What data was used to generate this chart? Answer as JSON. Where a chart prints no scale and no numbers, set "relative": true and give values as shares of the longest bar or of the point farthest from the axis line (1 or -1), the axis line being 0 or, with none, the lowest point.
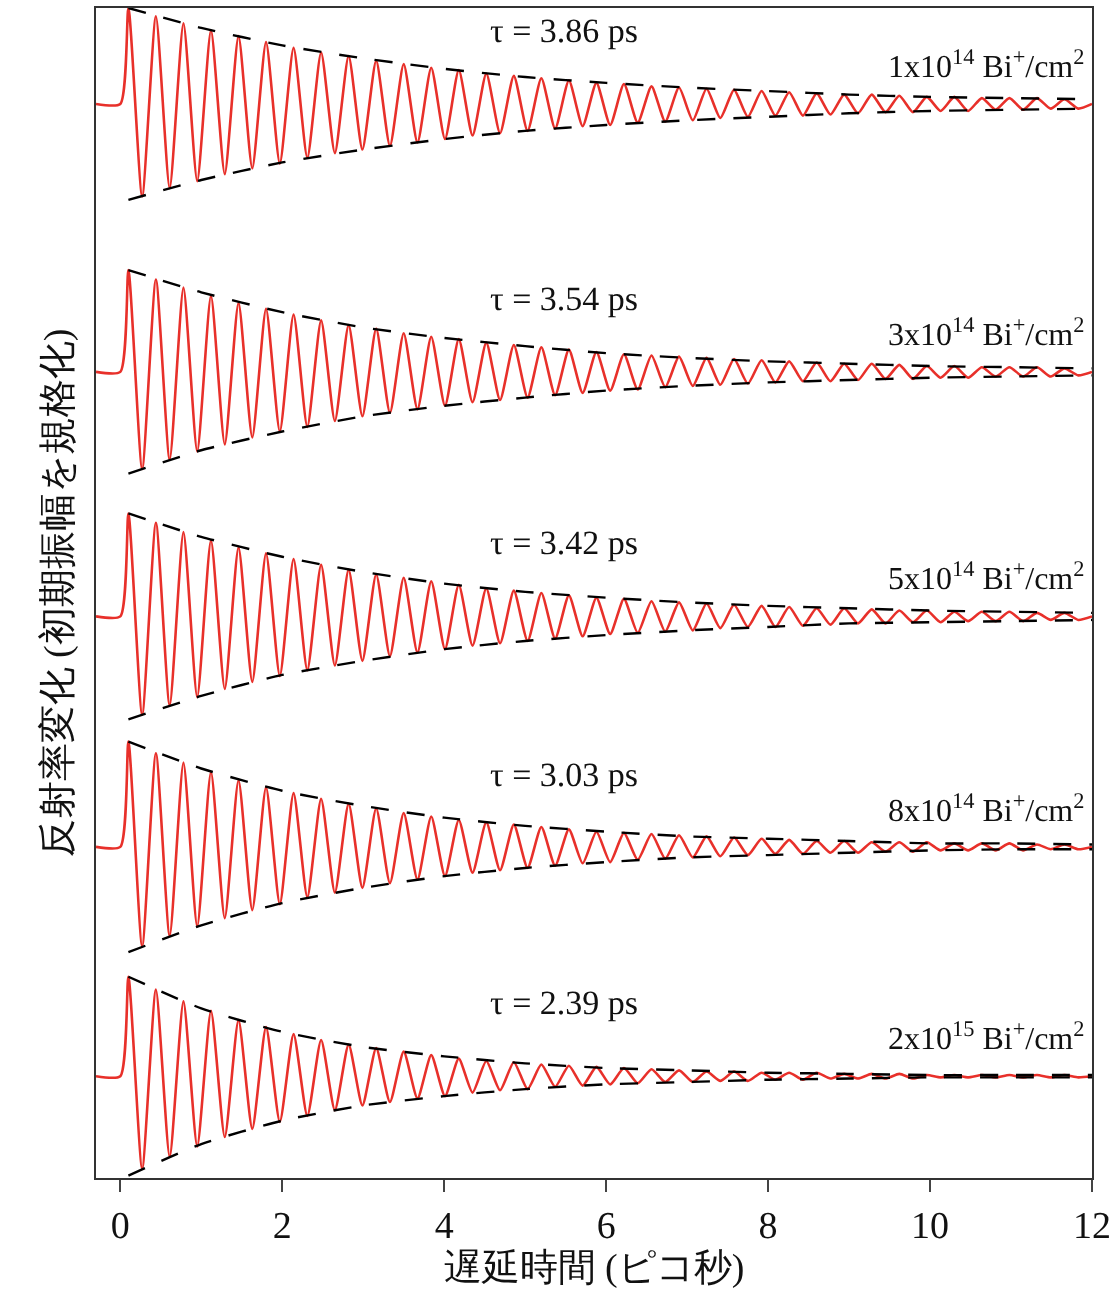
{
  "chart_data": {
    "type": "line",
    "relative": true,
    "marker": "none",
    "xlabel": "遅延時間 (ピコ秒)",
    "ylabel": "反射率変化 (初期振幅を規格化)",
    "xlim": [
      -0.3,
      12
    ],
    "xticks": [
      0,
      2,
      4,
      6,
      8,
      10,
      12
    ],
    "x": [
      -0.3,
      0,
      0.1,
      0.27,
      0.44,
      0.61,
      0.78,
      0.95,
      1.12,
      1.29,
      1.46,
      1.63,
      1.8,
      1.97,
      2.14,
      2.31,
      2.48,
      2.65,
      2.82,
      2.99,
      3.16,
      3.33,
      3.5,
      3.67,
      3.84,
      4.01,
      4.18,
      4.35,
      4.52,
      4.69,
      4.86,
      5.03,
      5.2,
      5.37,
      5.54,
      5.71,
      5.88,
      6.05,
      6.22,
      6.39,
      6.56,
      6.73,
      6.9,
      7.07,
      7.24,
      7.41,
      7.58,
      7.75,
      7.92,
      8.09,
      8.26,
      8.43,
      8.6,
      8.77,
      8.94,
      9.11,
      9.28,
      9.45,
      9.62,
      9.79,
      9.96,
      10.13,
      10.3,
      10.47,
      10.64,
      10.81,
      10.98,
      11.15,
      11.32,
      11.49,
      11.66,
      11.83,
      12
    ],
    "series": [
      {
        "color": "#e8302a",
        "line_style": "solid",
        "values": [
          0.918,
          0.918,
          1.0,
          0.839,
          0.993,
          0.846,
          0.987,
          0.852,
          0.981,
          0.858,
          0.976,
          0.863,
          0.971,
          0.867,
          0.966,
          0.872,
          0.962,
          0.876,
          0.959,
          0.879,
          0.955,
          0.882,
          0.952,
          0.885,
          0.949,
          0.888,
          0.947,
          0.891,
          0.944,
          0.893,
          0.942,
          0.895,
          0.94,
          0.897,
          0.938,
          0.899,
          0.936,
          0.9,
          0.935,
          0.902,
          0.933,
          0.903,
          0.932,
          0.904,
          0.931,
          0.906,
          0.93,
          0.907,
          0.929,
          0.908,
          0.928,
          0.908,
          0.927,
          0.909,
          0.926,
          0.91,
          0.926,
          0.911,
          0.925,
          0.911,
          0.924,
          0.912,
          0.924,
          0.912,
          0.923,
          0.913,
          0.923,
          0.913,
          0.923,
          0.914,
          0.922,
          0.914,
          0.918
        ]
      },
      {
        "color": "#e8302a",
        "line_style": "solid",
        "values": [
          0.689,
          0.689,
          0.776,
          0.606,
          0.768,
          0.614,
          0.761,
          0.621,
          0.754,
          0.627,
          0.748,
          0.633,
          0.743,
          0.638,
          0.738,
          0.642,
          0.733,
          0.647,
          0.729,
          0.651,
          0.726,
          0.654,
          0.722,
          0.657,
          0.719,
          0.66,
          0.717,
          0.663,
          0.714,
          0.665,
          0.712,
          0.667,
          0.71,
          0.669,
          0.708,
          0.671,
          0.706,
          0.673,
          0.704,
          0.674,
          0.703,
          0.676,
          0.702,
          0.677,
          0.701,
          0.678,
          0.7,
          0.679,
          0.699,
          0.68,
          0.698,
          0.681,
          0.697,
          0.681,
          0.696,
          0.682,
          0.696,
          0.683,
          0.695,
          0.683,
          0.694,
          0.684,
          0.694,
          0.684,
          0.693,
          0.685,
          0.693,
          0.685,
          0.693,
          0.685,
          0.692,
          0.686,
          0.689
        ]
      },
      {
        "color": "#e8302a",
        "line_style": "solid",
        "values": [
          0.48,
          0.48,
          0.568,
          0.396,
          0.56,
          0.404,
          0.552,
          0.411,
          0.545,
          0.418,
          0.539,
          0.424,
          0.534,
          0.429,
          0.529,
          0.434,
          0.524,
          0.438,
          0.52,
          0.442,
          0.516,
          0.446,
          0.513,
          0.449,
          0.51,
          0.452,
          0.507,
          0.455,
          0.504,
          0.457,
          0.502,
          0.459,
          0.5,
          0.461,
          0.498,
          0.463,
          0.496,
          0.465,
          0.495,
          0.466,
          0.493,
          0.467,
          0.492,
          0.468,
          0.491,
          0.47,
          0.49,
          0.471,
          0.489,
          0.471,
          0.488,
          0.472,
          0.487,
          0.473,
          0.487,
          0.474,
          0.486,
          0.474,
          0.485,
          0.475,
          0.485,
          0.475,
          0.484,
          0.476,
          0.484,
          0.476,
          0.484,
          0.476,
          0.483,
          0.477,
          0.483,
          0.477,
          0.48
        ]
      },
      {
        "color": "#e8302a",
        "line_style": "solid",
        "values": [
          0.283,
          0.283,
          0.373,
          0.198,
          0.363,
          0.207,
          0.355,
          0.215,
          0.347,
          0.222,
          0.34,
          0.229,
          0.334,
          0.234,
          0.329,
          0.24,
          0.324,
          0.244,
          0.32,
          0.248,
          0.316,
          0.252,
          0.312,
          0.255,
          0.309,
          0.258,
          0.306,
          0.261,
          0.304,
          0.263,
          0.302,
          0.265,
          0.3,
          0.267,
          0.298,
          0.269,
          0.296,
          0.27,
          0.295,
          0.272,
          0.294,
          0.273,
          0.293,
          0.274,
          0.292,
          0.275,
          0.291,
          0.276,
          0.29,
          0.277,
          0.289,
          0.277,
          0.288,
          0.278,
          0.288,
          0.278,
          0.287,
          0.279,
          0.287,
          0.279,
          0.287,
          0.28,
          0.286,
          0.28,
          0.286,
          0.28,
          0.286,
          0.28,
          0.285,
          0.281,
          0.285,
          0.281,
          0.283
        ]
      },
      {
        "color": "#e8302a",
        "line_style": "solid",
        "values": [
          0.087,
          0.087,
          0.172,
          0.008,
          0.161,
          0.018,
          0.151,
          0.027,
          0.143,
          0.035,
          0.135,
          0.042,
          0.129,
          0.048,
          0.123,
          0.053,
          0.118,
          0.058,
          0.114,
          0.062,
          0.111,
          0.065,
          0.108,
          0.068,
          0.105,
          0.07,
          0.102,
          0.073,
          0.1,
          0.075,
          0.099,
          0.076,
          0.097,
          0.078,
          0.096,
          0.079,
          0.095,
          0.08,
          0.094,
          0.081,
          0.093,
          0.082,
          0.092,
          0.082,
          0.091,
          0.083,
          0.091,
          0.083,
          0.09,
          0.084,
          0.09,
          0.084,
          0.09,
          0.085,
          0.089,
          0.085,
          0.089,
          0.085,
          0.089,
          0.085,
          0.088,
          0.086,
          0.088,
          0.086,
          0.088,
          0.086,
          0.088,
          0.086,
          0.088,
          0.086,
          0.088,
          0.086,
          0.087
        ]
      },
      {
        "color": "#000000",
        "line_style": "dashed",
        "x": [
          0.1,
          1,
          2,
          3,
          4,
          5,
          6,
          7,
          8,
          9,
          10,
          11,
          12
        ],
        "values": [
          1.0,
          0.983,
          0.968,
          0.957,
          0.948,
          0.941,
          0.936,
          0.932,
          0.929,
          0.926,
          0.924,
          0.923,
          0.922
        ]
      },
      {
        "color": "#000000",
        "line_style": "dashed",
        "x": [
          0.1,
          1,
          2,
          3,
          4,
          5,
          6,
          7,
          8,
          9,
          10,
          11,
          12
        ],
        "values": [
          0.836,
          0.853,
          0.868,
          0.879,
          0.888,
          0.895,
          0.9,
          0.904,
          0.907,
          0.91,
          0.912,
          0.913,
          0.914
        ]
      },
      {
        "color": "#000000",
        "line_style": "dashed",
        "x": [
          0.1,
          1,
          2,
          3,
          4,
          5,
          6,
          7,
          8,
          9,
          10,
          11,
          12
        ],
        "values": [
          0.776,
          0.757,
          0.74,
          0.727,
          0.718,
          0.711,
          0.705,
          0.701,
          0.698,
          0.696,
          0.694,
          0.693,
          0.692
        ]
      },
      {
        "color": "#000000",
        "line_style": "dashed",
        "x": [
          0.1,
          1,
          2,
          3,
          4,
          5,
          6,
          7,
          8,
          9,
          10,
          11,
          12
        ],
        "values": [
          0.602,
          0.622,
          0.638,
          0.651,
          0.66,
          0.667,
          0.673,
          0.677,
          0.68,
          0.682,
          0.684,
          0.685,
          0.686
        ]
      },
      {
        "color": "#000000",
        "line_style": "dashed",
        "x": [
          0.1,
          1,
          2,
          3,
          4,
          5,
          6,
          7,
          8,
          9,
          10,
          11,
          12
        ],
        "values": [
          0.568,
          0.548,
          0.531,
          0.518,
          0.508,
          0.501,
          0.496,
          0.492,
          0.489,
          0.487,
          0.485,
          0.484,
          0.483
        ]
      },
      {
        "color": "#000000",
        "line_style": "dashed",
        "x": [
          0.1,
          1,
          2,
          3,
          4,
          5,
          6,
          7,
          8,
          9,
          10,
          11,
          12
        ],
        "values": [
          0.392,
          0.412,
          0.43,
          0.442,
          0.452,
          0.459,
          0.464,
          0.468,
          0.471,
          0.474,
          0.475,
          0.476,
          0.477
        ]
      },
      {
        "color": "#000000",
        "line_style": "dashed",
        "x": [
          0.1,
          1,
          2,
          3,
          4,
          5,
          6,
          7,
          8,
          9,
          10,
          11,
          12
        ],
        "values": [
          0.373,
          0.35,
          0.331,
          0.318,
          0.308,
          0.301,
          0.296,
          0.292,
          0.29,
          0.288,
          0.286,
          0.286,
          0.285
        ]
      },
      {
        "color": "#000000",
        "line_style": "dashed",
        "x": [
          0.1,
          1,
          2,
          3,
          4,
          5,
          6,
          7,
          8,
          9,
          10,
          11,
          12
        ],
        "values": [
          0.193,
          0.216,
          0.235,
          0.248,
          0.258,
          0.265,
          0.27,
          0.274,
          0.276,
          0.278,
          0.28,
          0.281,
          0.281
        ]
      },
      {
        "color": "#000000",
        "line_style": "dashed",
        "x": [
          0.1,
          1,
          2,
          3,
          4,
          5,
          6,
          7,
          8,
          9,
          10,
          11,
          12
        ],
        "values": [
          0.172,
          0.145,
          0.125,
          0.112,
          0.104,
          0.098,
          0.094,
          0.092,
          0.09,
          0.089,
          0.088,
          0.088,
          0.088
        ]
      },
      {
        "color": "#000000",
        "line_style": "dashed",
        "x": [
          0.1,
          1,
          2,
          3,
          4,
          5,
          6,
          7,
          8,
          9,
          10,
          11,
          12
        ],
        "values": [
          0.002,
          0.029,
          0.049,
          0.062,
          0.07,
          0.076,
          0.08,
          0.082,
          0.084,
          0.085,
          0.086,
          0.086,
          0.086
        ]
      }
    ],
    "annotations": [
      "τ = 3.86 ps",
      "1x10$^{14}$ Bi$^{+}$/cm$^{2}$",
      "τ = 3.54 ps",
      "3x10$^{14}$ Bi$^{+}$/cm$^{2}$",
      "τ = 3.42 ps",
      "5x10$^{14}$ Bi$^{+}$/cm$^{2}$",
      "τ = 3.03 ps",
      "8x10$^{14}$ Bi$^{+}$/cm$^{2}$",
      "τ = 2.39 ps",
      "2x10$^{15}$ Bi$^{+}$/cm$^{2}$"
    ]
  }
}
